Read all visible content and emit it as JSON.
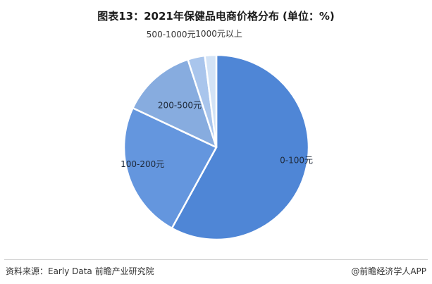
{
  "title": "图表13：2021年保健品电商价格分布 (单位：%)",
  "footer": {
    "source": "资料来源：Early Data 前瞻产业研究院",
    "publisher": "@前瞻经济学人APP"
  },
  "colors": {
    "outline": "#ffffff",
    "slices": [
      "#4f86d6",
      "#6496de",
      "#87acdf",
      "#a9c5ec",
      "#d3e3f6"
    ]
  },
  "chart_data": {
    "type": "pie",
    "title": "图表13：2021年保健品电商价格分布 (单位：%)",
    "categories": [
      "0-100元",
      "100-200元",
      "200-500元",
      "500-1000元",
      "1000元以上"
    ],
    "values": [
      58,
      24,
      13,
      3,
      2
    ],
    "start": "12 o'clock",
    "direction": "clockwise",
    "legend": "none",
    "data_labels": "category names"
  }
}
